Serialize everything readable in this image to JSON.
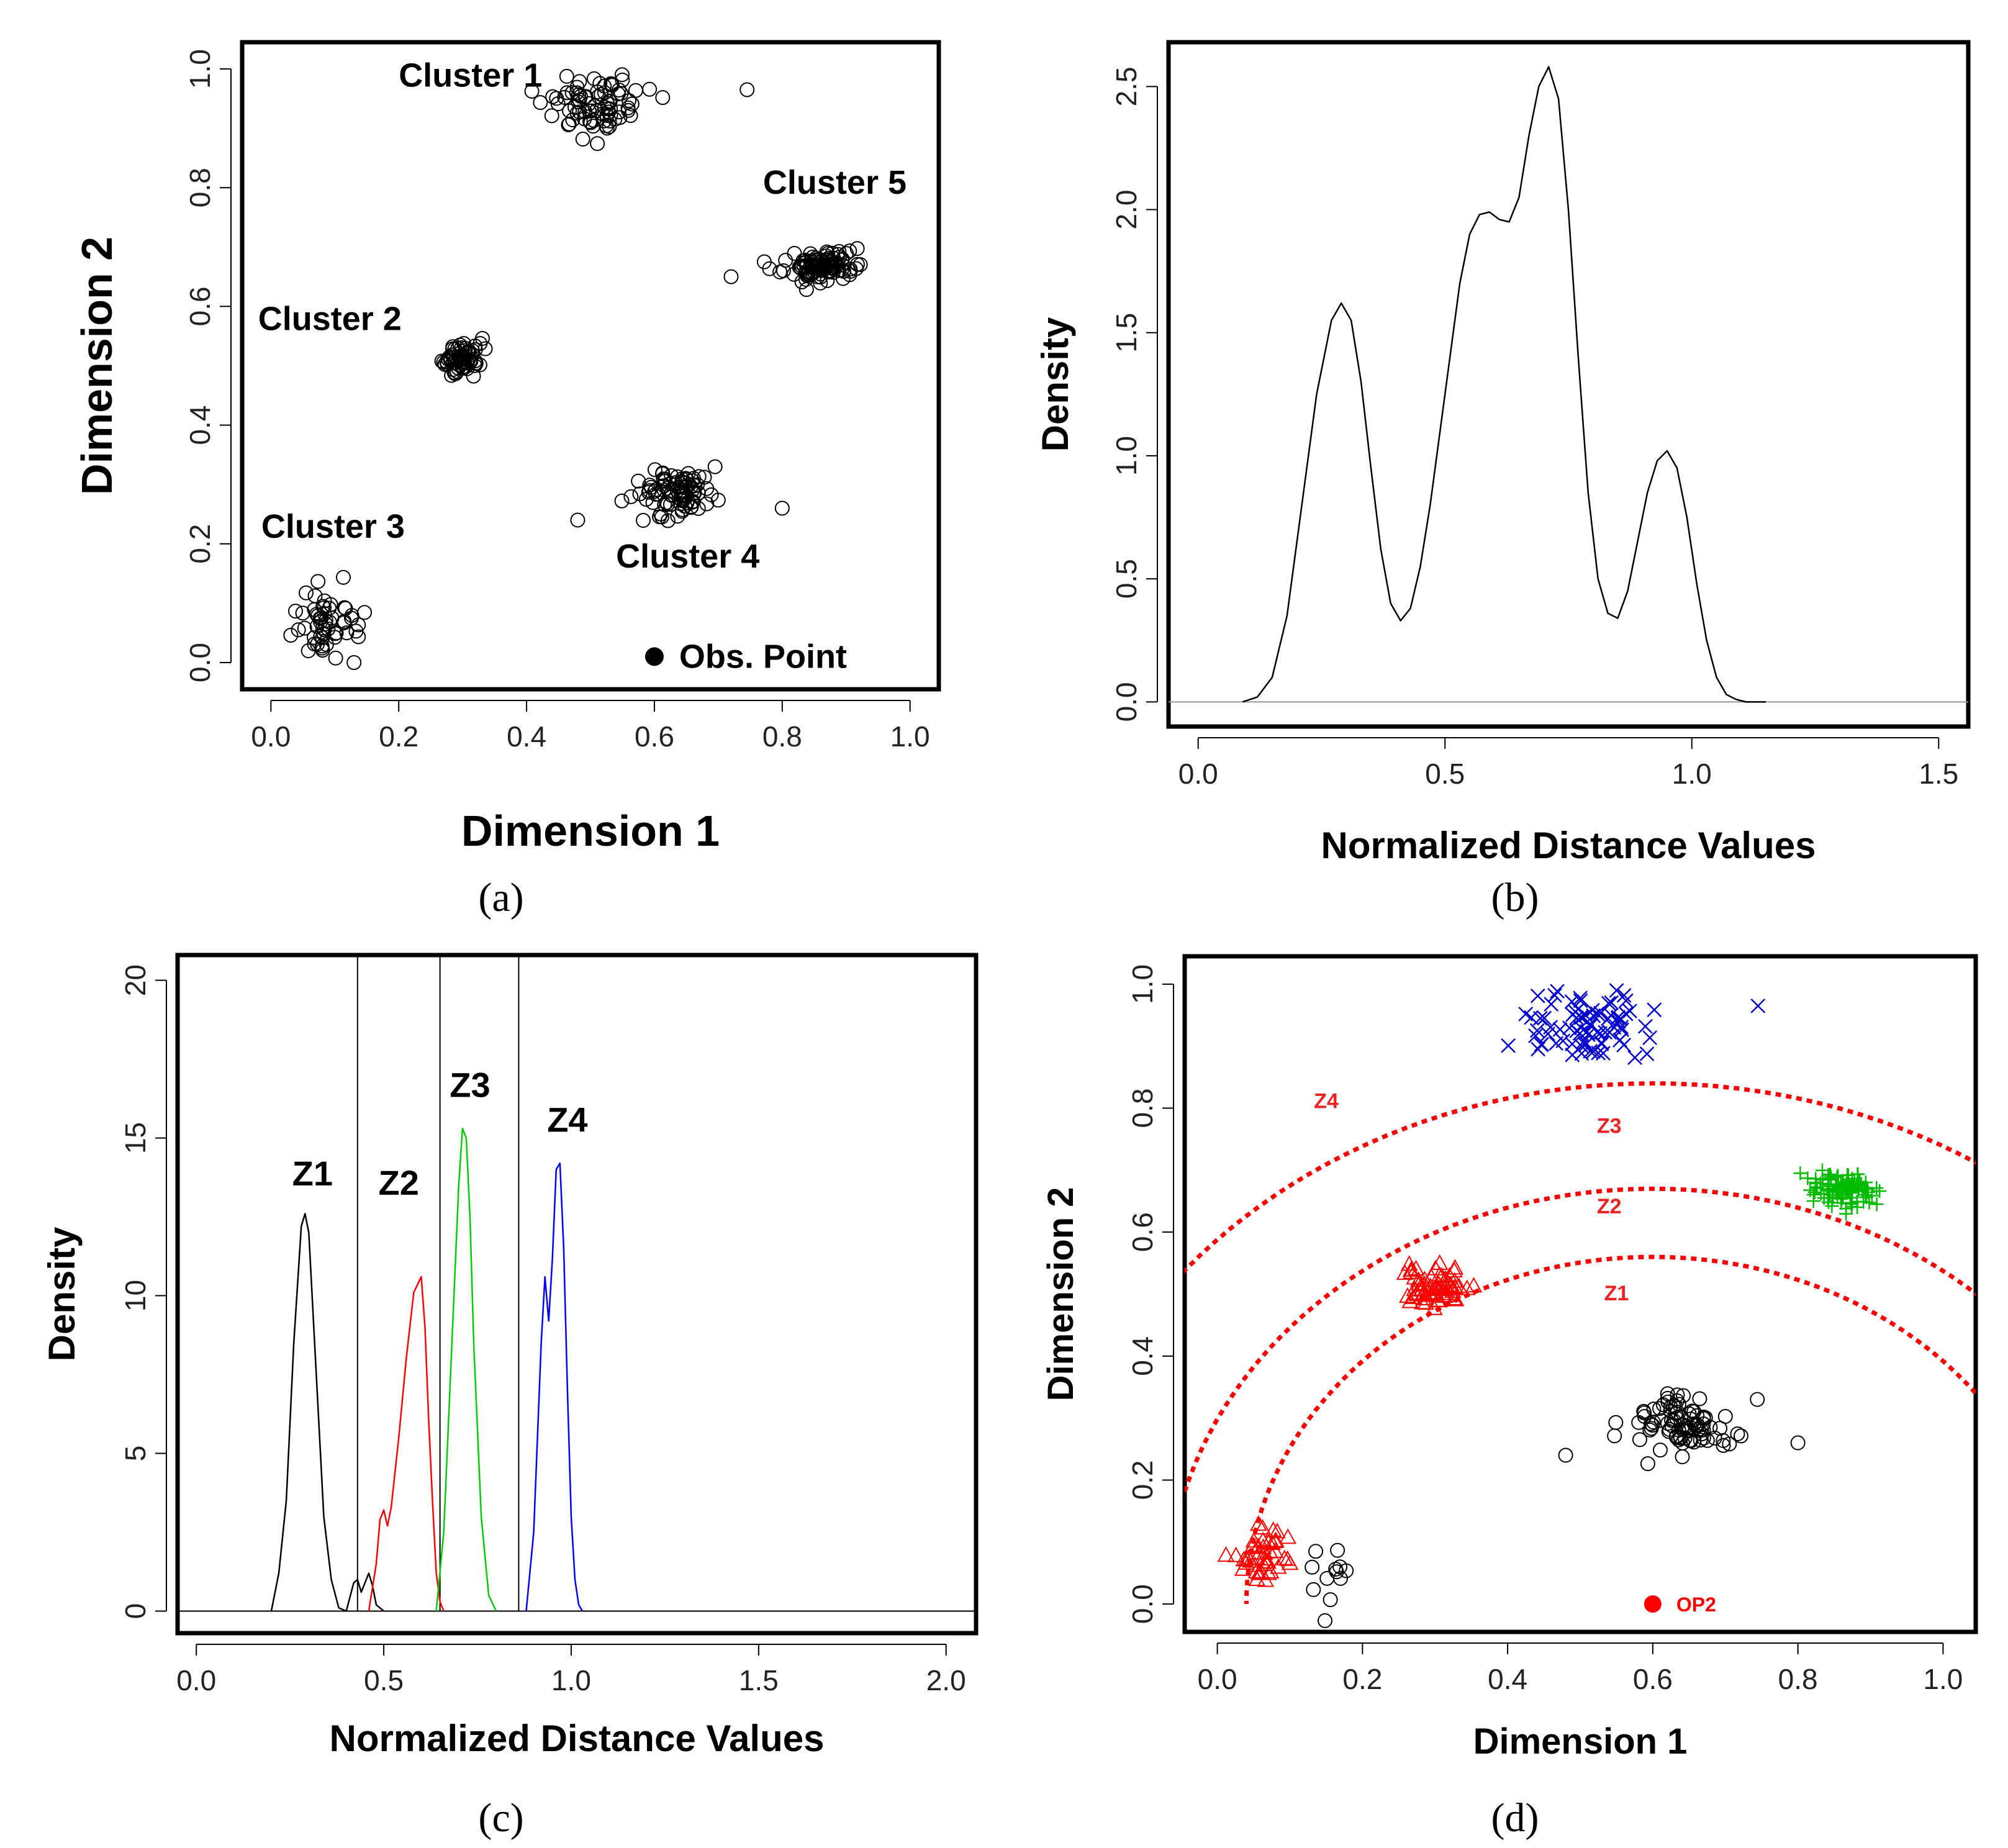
{
  "figure": {
    "panel_labels": [
      "(a)",
      "(b)",
      "(c)",
      "(d)"
    ]
  },
  "chart_data": [
    {
      "id": "a",
      "type": "scatter",
      "title": "",
      "xlabel": "Dimension 1",
      "ylabel": "Dimension 2",
      "xlim": [
        -0.045,
        1.045
      ],
      "ylim": [
        -0.045,
        1.045
      ],
      "xticks": [
        "0.0",
        "0.2",
        "0.4",
        "0.6",
        "0.8",
        "1.0"
      ],
      "yticks": [
        "0.0",
        "0.2",
        "0.4",
        "0.6",
        "0.8",
        "1.0"
      ],
      "clusters": [
        {
          "name": "Cluster 1",
          "center": [
            0.51,
            0.94
          ],
          "spread": [
            0.08,
            0.03
          ],
          "n": 80,
          "label_at": [
            0.2,
            0.97
          ]
        },
        {
          "name": "Cluster 2",
          "center": [
            0.3,
            0.51
          ],
          "spread": [
            0.03,
            0.018
          ],
          "n": 70,
          "label_at": [
            -0.02,
            0.56
          ]
        },
        {
          "name": "Cluster 3",
          "center": [
            0.09,
            0.07
          ],
          "spread": [
            0.05,
            0.03
          ],
          "n": 55,
          "label_at": [
            -0.015,
            0.21
          ]
        },
        {
          "name": "Cluster 4",
          "center": [
            0.64,
            0.29
          ],
          "spread": [
            0.06,
            0.025
          ],
          "n": 90,
          "label_at": [
            0.54,
            0.16
          ]
        },
        {
          "name": "Cluster 5",
          "center": [
            0.86,
            0.67
          ],
          "spread": [
            0.05,
            0.015
          ],
          "n": 110,
          "label_at": [
            0.77,
            0.79
          ]
        }
      ],
      "outliers": [
        [
          0.745,
          0.965
        ],
        [
          0.8,
          0.26
        ],
        [
          0.48,
          0.24
        ],
        [
          0.72,
          0.65
        ],
        [
          0.13,
          0.0
        ]
      ],
      "observation_point": {
        "label": "Obs. Point",
        "x": 0.6,
        "y": 0.01
      }
    },
    {
      "id": "b",
      "type": "line",
      "title": "",
      "xlabel": "Normalized Distance Values",
      "ylabel": "Density",
      "xlim": [
        -0.06,
        1.56
      ],
      "ylim": [
        -0.1,
        2.68
      ],
      "xticks": [
        "0.0",
        "0.5",
        "1.0",
        "1.5"
      ],
      "yticks": [
        "0.0",
        "0.5",
        "1.0",
        "1.5",
        "2.0",
        "2.5"
      ],
      "series": [
        {
          "name": "density",
          "x": [
            0.09,
            0.12,
            0.15,
            0.18,
            0.21,
            0.24,
            0.27,
            0.29,
            0.31,
            0.33,
            0.35,
            0.37,
            0.39,
            0.41,
            0.43,
            0.45,
            0.47,
            0.49,
            0.51,
            0.53,
            0.55,
            0.57,
            0.59,
            0.61,
            0.63,
            0.65,
            0.67,
            0.69,
            0.71,
            0.73,
            0.75,
            0.77,
            0.79,
            0.81,
            0.83,
            0.85,
            0.87,
            0.89,
            0.91,
            0.93,
            0.95,
            0.97,
            0.99,
            1.01,
            1.03,
            1.05,
            1.07,
            1.09,
            1.11,
            1.15
          ],
          "values": [
            0.0,
            0.02,
            0.1,
            0.35,
            0.8,
            1.25,
            1.55,
            1.62,
            1.55,
            1.3,
            0.95,
            0.62,
            0.4,
            0.33,
            0.38,
            0.55,
            0.8,
            1.1,
            1.4,
            1.7,
            1.9,
            1.98,
            1.99,
            1.96,
            1.95,
            2.05,
            2.3,
            2.5,
            2.58,
            2.45,
            2.0,
            1.4,
            0.85,
            0.5,
            0.36,
            0.34,
            0.45,
            0.65,
            0.85,
            0.98,
            1.02,
            0.95,
            0.75,
            0.48,
            0.25,
            0.1,
            0.03,
            0.01,
            0.0,
            0.0
          ]
        }
      ]
    },
    {
      "id": "c",
      "type": "line",
      "title": "",
      "xlabel": "Normalized Distance Values",
      "ylabel": "Density",
      "xlim": [
        -0.05,
        2.08
      ],
      "ylim": [
        -0.7,
        20.8
      ],
      "xticks": [
        "0.0",
        "0.5",
        "1.0",
        "1.5",
        "2.0"
      ],
      "yticks": [
        "0",
        "5",
        "10",
        "15",
        "20"
      ],
      "vlines": [
        0.43,
        0.65,
        0.86
      ],
      "zone_labels": [
        {
          "text": "Z1",
          "x": 0.31,
          "y": 13.5
        },
        {
          "text": "Z2",
          "x": 0.54,
          "y": 13.2
        },
        {
          "text": "Z3",
          "x": 0.73,
          "y": 16.3
        },
        {
          "text": "Z4",
          "x": 0.99,
          "y": 15.2
        }
      ],
      "series": [
        {
          "name": "Z1",
          "color": "#000000",
          "x": [
            0.2,
            0.22,
            0.24,
            0.26,
            0.28,
            0.29,
            0.3,
            0.32,
            0.34,
            0.36,
            0.38,
            0.4,
            0.42,
            0.43,
            0.44,
            0.46,
            0.47,
            0.48,
            0.5
          ],
          "values": [
            0,
            1.2,
            3.5,
            8.5,
            12.2,
            12.6,
            12.0,
            7.5,
            3.0,
            1.0,
            0.1,
            0.0,
            0.9,
            1.0,
            0.6,
            1.2,
            0.8,
            0.2,
            0
          ]
        },
        {
          "name": "Z2",
          "color": "#ff0000",
          "x": [
            0.46,
            0.48,
            0.49,
            0.5,
            0.51,
            0.52,
            0.54,
            0.56,
            0.58,
            0.6,
            0.61,
            0.62,
            0.63,
            0.64,
            0.65,
            0.66
          ],
          "values": [
            0,
            1.5,
            2.9,
            3.2,
            2.7,
            3.3,
            5.5,
            8.0,
            10.1,
            10.6,
            9.0,
            6.0,
            3.5,
            1.2,
            0.3,
            0
          ]
        },
        {
          "name": "Z3",
          "color": "#00cc00",
          "x": [
            0.64,
            0.66,
            0.68,
            0.7,
            0.71,
            0.72,
            0.73,
            0.74,
            0.76,
            0.78,
            0.8
          ],
          "values": [
            0,
            2.5,
            8.0,
            13.5,
            15.3,
            15.0,
            12.5,
            8.5,
            3.0,
            0.5,
            0
          ]
        },
        {
          "name": "Z4",
          "color": "#0000ff",
          "x": [
            0.88,
            0.9,
            0.91,
            0.92,
            0.93,
            0.94,
            0.95,
            0.96,
            0.97,
            0.98,
            0.99,
            1.0,
            1.01,
            1.02,
            1.03
          ],
          "values": [
            0,
            2.5,
            5.5,
            8.5,
            10.6,
            9.2,
            11.2,
            14.0,
            14.2,
            11.5,
            7.0,
            3.0,
            1.0,
            0.2,
            0
          ]
        }
      ]
    },
    {
      "id": "d",
      "type": "scatter",
      "title": "",
      "xlabel": "Dimension 1",
      "ylabel": "Dimension 2",
      "xlim": [
        -0.045,
        1.045
      ],
      "ylim": [
        -0.045,
        1.045
      ],
      "xticks": [
        "0.0",
        "0.2",
        "0.4",
        "0.6",
        "0.8",
        "1.0"
      ],
      "yticks": [
        "0.0",
        "0.2",
        "0.4",
        "0.6",
        "0.8",
        "1.0"
      ],
      "groups": [
        {
          "marker": "x",
          "color": "#0000cc",
          "center": [
            0.51,
            0.94
          ],
          "spread": [
            0.08,
            0.03
          ],
          "n": 80
        },
        {
          "marker": "plus",
          "color": "#00bb00",
          "center": [
            0.86,
            0.67
          ],
          "spread": [
            0.05,
            0.015
          ],
          "n": 110
        },
        {
          "marker": "triangle",
          "color": "#ff0000",
          "center": [
            0.3,
            0.51
          ],
          "spread": [
            0.03,
            0.018
          ],
          "n": 70
        },
        {
          "marker": "triangle",
          "color": "#ff0000",
          "center": [
            0.06,
            0.07
          ],
          "spread": [
            0.035,
            0.028
          ],
          "n": 45
        },
        {
          "marker": "circle",
          "color": "#000000",
          "center": [
            0.15,
            0.05
          ],
          "spread": [
            0.025,
            0.03
          ],
          "n": 12
        },
        {
          "marker": "circle",
          "color": "#000000",
          "center": [
            0.64,
            0.29
          ],
          "spread": [
            0.06,
            0.025
          ],
          "n": 90
        }
      ],
      "outliers": [
        {
          "marker": "x",
          "color": "#0000cc",
          "x": 0.745,
          "y": 0.965
        },
        {
          "marker": "circle",
          "color": "#000000",
          "x": 0.8,
          "y": 0.26
        },
        {
          "marker": "circle",
          "color": "#000000",
          "x": 0.48,
          "y": 0.24
        }
      ],
      "arcs": {
        "center": [
          0.6,
          0.0
        ],
        "color": "#ff0000",
        "radii": [
          0.56,
          0.67,
          0.84
        ]
      },
      "zone_labels": [
        {
          "text": "Z1",
          "x": 0.55,
          "y": 0.49
        },
        {
          "text": "Z2",
          "x": 0.54,
          "y": 0.63
        },
        {
          "text": "Z3",
          "x": 0.54,
          "y": 0.76
        },
        {
          "text": "Z4",
          "x": 0.15,
          "y": 0.8
        }
      ],
      "observation_point": {
        "label": "OP2",
        "x": 0.6,
        "y": 0.0,
        "color": "#ff0000"
      }
    }
  ]
}
